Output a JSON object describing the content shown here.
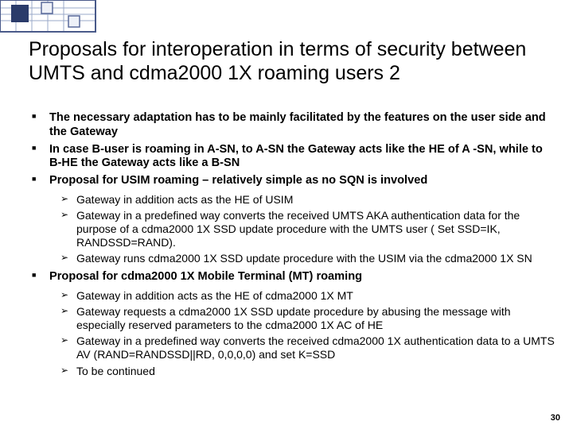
{
  "deco": {
    "outer_border": "#4a5a8a",
    "grid_line": "#9aa8c8",
    "accent_dark": "#2a3b6a",
    "square_border": "#5a6a9a",
    "square_fill": "#eef1f8"
  },
  "title": "Proposals for interoperation in terms of security between UMTS and cdma2000 1X roaming users 2",
  "bullets": [
    {
      "text": "The necessary adaptation has to be mainly facilitated by the features on the user side and the Gateway"
    },
    {
      "text": "In case B-user is roaming in A-SN, to A-SN the Gateway acts like the HE of A -SN, while to B-HE the Gateway acts like a B-SN"
    },
    {
      "text": "Proposal for USIM roaming – relatively simple as no SQN is involved",
      "sub": [
        "Gateway in addition acts as the HE of USIM",
        "Gateway in a predefined way converts the received UMTS AKA authentication data  for the purpose of a cdma2000 1X SSD update procedure with the UMTS user ( Set SSD=IK, RANDSSD=RAND).",
        "Gateway runs cdma2000 1X SSD update procedure with the USIM via the cdma2000 1X SN"
      ]
    },
    {
      "text": "Proposal for cdma2000 1X Mobile Terminal (MT) roaming",
      "sub": [
        "Gateway in addition acts as the HE of cdma2000 1X MT",
        "Gateway requests a cdma2000 1X SSD update procedure by abusing the message with especially reserved parameters to the cdma2000 1X AC of HE",
        "Gateway in a predefined way converts the received cdma2000 1X authentication data to a UMTS AV (RAND=RANDSSD||RD, 0,0,0,0) and set K=SSD",
        "To be continued"
      ]
    }
  ],
  "page_number": "30"
}
